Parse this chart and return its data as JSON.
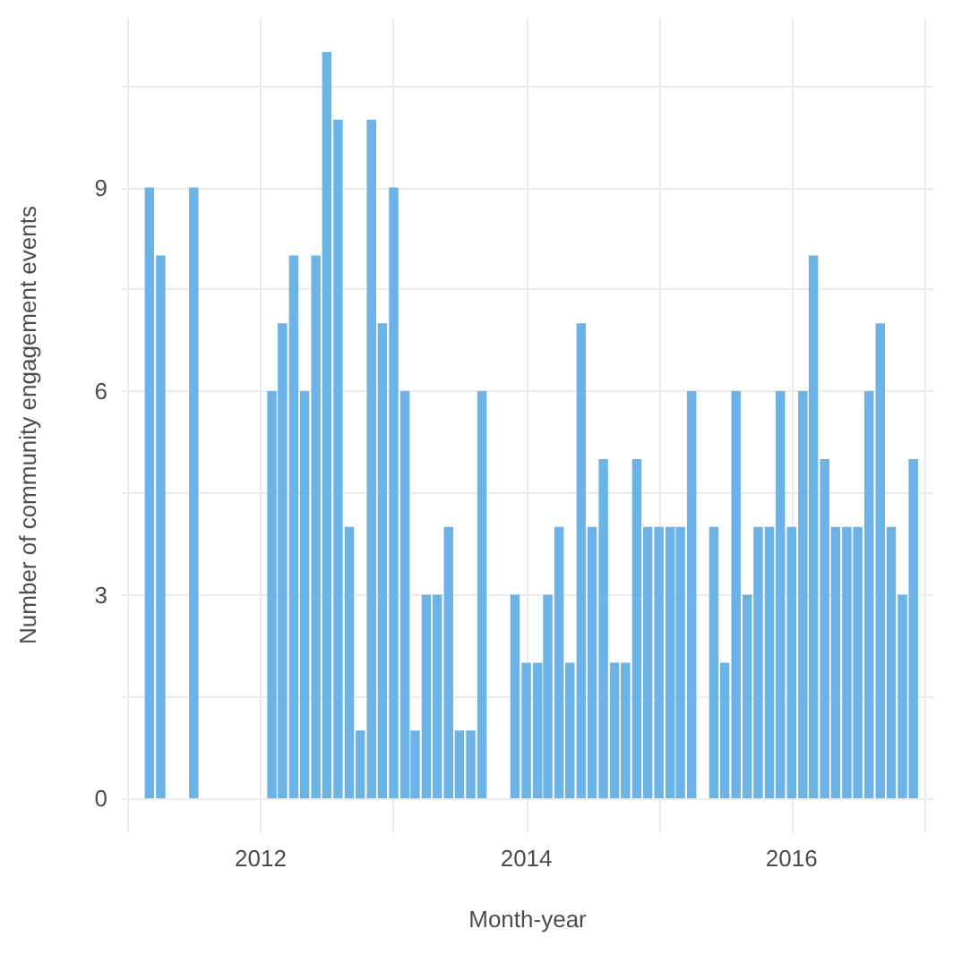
{
  "chart_data": {
    "type": "bar",
    "xlabel": "Month-year",
    "ylabel": "Number of community engagement events",
    "x": [
      "2011-03",
      "2011-04",
      "2011-07",
      "2012-02",
      "2012-03",
      "2012-04",
      "2012-05",
      "2012-06",
      "2012-07",
      "2012-08",
      "2012-09",
      "2012-10",
      "2012-11",
      "2012-12",
      "2013-01",
      "2013-02",
      "2013-03",
      "2013-04",
      "2013-05",
      "2013-06",
      "2013-07",
      "2013-08",
      "2013-09",
      "2013-12",
      "2014-01",
      "2014-02",
      "2014-03",
      "2014-04",
      "2014-05",
      "2014-06",
      "2014-07",
      "2014-08",
      "2014-09",
      "2014-10",
      "2014-11",
      "2014-12",
      "2015-01",
      "2015-02",
      "2015-03",
      "2015-04",
      "2015-06",
      "2015-07",
      "2015-08",
      "2015-09",
      "2015-10",
      "2015-11",
      "2015-12",
      "2016-01",
      "2016-02",
      "2016-03",
      "2016-04",
      "2016-05",
      "2016-06",
      "2016-07",
      "2016-08",
      "2016-09",
      "2016-10",
      "2016-11",
      "2016-12"
    ],
    "values": [
      9,
      8,
      9,
      6,
      7,
      8,
      6,
      8,
      11,
      10,
      4,
      1,
      10,
      7,
      9,
      6,
      1,
      3,
      3,
      4,
      1,
      1,
      6,
      3,
      2,
      2,
      3,
      4,
      2,
      7,
      4,
      5,
      2,
      2,
      5,
      4,
      4,
      4,
      4,
      6,
      4,
      2,
      6,
      3,
      4,
      4,
      6,
      4,
      6,
      8,
      5,
      4,
      4,
      4,
      6,
      7,
      4,
      3,
      5
    ],
    "color": "#6cb4e8",
    "xlim": [
      "2010-12-15",
      "2017-01-25"
    ],
    "xticks": [
      {
        "value": "2011",
        "label": null
      },
      {
        "value": "2012",
        "label": "2012"
      },
      {
        "value": "2013",
        "label": null
      },
      {
        "value": "2014",
        "label": "2014"
      },
      {
        "value": "2015",
        "label": null
      },
      {
        "value": "2016",
        "label": "2016"
      },
      {
        "value": "2017",
        "label": null
      }
    ],
    "ylim": [
      -0.5,
      11.5
    ],
    "yticks": [
      0,
      {
        "value": 1.5,
        "label": null
      },
      3,
      {
        "value": 4.5,
        "label": null
      },
      6,
      {
        "value": 7.5,
        "label": null
      },
      9,
      {
        "value": 10.5,
        "label": null
      }
    ],
    "grid": true
  }
}
